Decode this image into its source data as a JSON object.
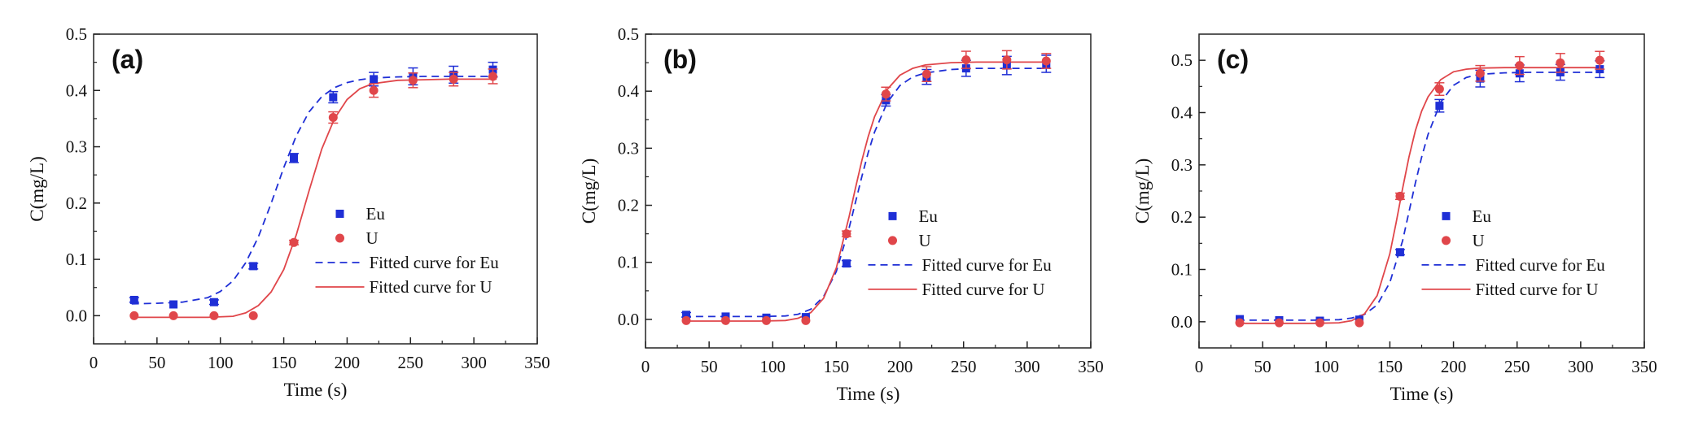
{
  "colors": {
    "eu": "#1f2fd6",
    "u": "#e0464a",
    "axis": "#222222"
  },
  "chart_data": [
    {
      "type": "scatter",
      "panel_label": "(a)",
      "xlabel": "Time (s)",
      "ylabel": "C(mg/L)",
      "xlim": [
        0,
        350
      ],
      "ylim": [
        -0.05,
        0.5
      ],
      "xticks": [
        "0",
        "50",
        "100",
        "150",
        "200",
        "250",
        "300",
        "350"
      ],
      "yticks": [
        "0.0",
        "0.1",
        "0.2",
        "0.3",
        "0.4",
        "0.5"
      ],
      "grid": false,
      "legend_position": "lower-right",
      "series": [
        {
          "name": "Eu",
          "marker": "square",
          "x": [
            32,
            63,
            95,
            126,
            158,
            189,
            221,
            252,
            284,
            315
          ],
          "y": [
            0.028,
            0.02,
            0.024,
            0.088,
            0.28,
            0.388,
            0.42,
            0.425,
            0.428,
            0.437
          ],
          "err": [
            0.004,
            0.003,
            0.004,
            0.005,
            0.008,
            0.01,
            0.012,
            0.015,
            0.015,
            0.013
          ]
        },
        {
          "name": "U",
          "marker": "circle",
          "x": [
            32,
            63,
            95,
            126,
            158,
            189,
            221,
            252,
            284,
            315
          ],
          "y": [
            0.0,
            0.0,
            0.0,
            0.0,
            0.13,
            0.352,
            0.4,
            0.418,
            0.42,
            0.425
          ],
          "err": [
            0.002,
            0.002,
            0.002,
            0.002,
            0.004,
            0.01,
            0.012,
            0.013,
            0.012,
            0.013
          ]
        },
        {
          "name": "Fitted curve for Eu",
          "line": "dashed",
          "x": [
            30,
            50,
            70,
            90,
            100,
            110,
            120,
            130,
            140,
            150,
            160,
            170,
            180,
            190,
            200,
            210,
            220,
            240,
            260,
            280,
            300,
            318
          ],
          "y": [
            0.021,
            0.022,
            0.024,
            0.032,
            0.043,
            0.062,
            0.094,
            0.14,
            0.199,
            0.263,
            0.32,
            0.362,
            0.389,
            0.405,
            0.414,
            0.419,
            0.422,
            0.424,
            0.425,
            0.425,
            0.425,
            0.425
          ]
        },
        {
          "name": "Fitted curve for U",
          "line": "solid",
          "x": [
            30,
            60,
            90,
            110,
            120,
            130,
            140,
            150,
            160,
            170,
            180,
            190,
            200,
            210,
            220,
            240,
            260,
            280,
            300,
            318
          ],
          "y": [
            -0.003,
            -0.003,
            -0.003,
            -0.001,
            0.005,
            0.018,
            0.042,
            0.082,
            0.144,
            0.222,
            0.296,
            0.35,
            0.384,
            0.403,
            0.412,
            0.418,
            0.419,
            0.42,
            0.42,
            0.42
          ]
        }
      ]
    },
    {
      "type": "scatter",
      "panel_label": "(b)",
      "xlabel": "Time (s)",
      "ylabel": "C(mg/L)",
      "xlim": [
        0,
        350
      ],
      "ylim": [
        -0.05,
        0.5
      ],
      "xticks": [
        "0",
        "50",
        "100",
        "150",
        "200",
        "250",
        "300",
        "350"
      ],
      "yticks": [
        "0.0",
        "0.1",
        "0.2",
        "0.3",
        "0.4",
        "0.5"
      ],
      "grid": false,
      "legend_position": "lower-right",
      "series": [
        {
          "name": "Eu",
          "marker": "square",
          "x": [
            32,
            63,
            95,
            126,
            158,
            189,
            221,
            252,
            284,
            315
          ],
          "y": [
            0.008,
            0.005,
            0.003,
            0.004,
            0.098,
            0.384,
            0.425,
            0.44,
            0.445,
            0.448
          ],
          "err": [
            0.004,
            0.003,
            0.003,
            0.003,
            0.005,
            0.01,
            0.013,
            0.014,
            0.016,
            0.015
          ]
        },
        {
          "name": "U",
          "marker": "circle",
          "x": [
            32,
            63,
            95,
            126,
            158,
            189,
            221,
            252,
            284,
            315
          ],
          "y": [
            -0.002,
            -0.002,
            -0.002,
            -0.002,
            0.15,
            0.395,
            0.43,
            0.455,
            0.455,
            0.453
          ],
          "err": [
            0.002,
            0.002,
            0.002,
            0.002,
            0.005,
            0.012,
            0.013,
            0.015,
            0.016,
            0.013
          ]
        },
        {
          "name": "Fitted curve for Eu",
          "line": "dashed",
          "x": [
            30,
            60,
            90,
            110,
            120,
            130,
            140,
            150,
            160,
            165,
            170,
            175,
            180,
            190,
            200,
            210,
            220,
            240,
            260,
            280,
            300,
            318
          ],
          "y": [
            0.005,
            0.005,
            0.005,
            0.006,
            0.009,
            0.018,
            0.04,
            0.084,
            0.16,
            0.205,
            0.25,
            0.292,
            0.328,
            0.38,
            0.41,
            0.425,
            0.432,
            0.438,
            0.44,
            0.44,
            0.44,
            0.44
          ]
        },
        {
          "name": "Fitted curve for U",
          "line": "solid",
          "x": [
            30,
            60,
            90,
            110,
            120,
            130,
            140,
            150,
            160,
            165,
            170,
            175,
            180,
            190,
            200,
            210,
            220,
            240,
            260,
            280,
            300,
            318
          ],
          "y": [
            -0.003,
            -0.003,
            -0.003,
            -0.002,
            0.002,
            0.012,
            0.037,
            0.09,
            0.18,
            0.23,
            0.278,
            0.32,
            0.355,
            0.403,
            0.428,
            0.44,
            0.446,
            0.45,
            0.451,
            0.451,
            0.451,
            0.451
          ]
        }
      ]
    },
    {
      "type": "scatter",
      "panel_label": "(c)",
      "xlabel": "Time (s)",
      "ylabel": "C(mg/L)",
      "xlim": [
        0,
        350
      ],
      "ylim": [
        -0.05,
        0.55
      ],
      "xticks": [
        "0",
        "50",
        "100",
        "150",
        "200",
        "250",
        "300",
        "350"
      ],
      "yticks": [
        "0.0",
        "0.1",
        "0.2",
        "0.3",
        "0.4",
        "0.5"
      ],
      "grid": false,
      "legend_position": "lower-right",
      "series": [
        {
          "name": "Eu",
          "marker": "square",
          "x": [
            32,
            63,
            95,
            126,
            158,
            189,
            221,
            252,
            284,
            315
          ],
          "y": [
            0.005,
            0.003,
            0.002,
            0.004,
            0.133,
            0.413,
            0.465,
            0.475,
            0.477,
            0.483
          ],
          "err": [
            0.003,
            0.003,
            0.003,
            0.003,
            0.005,
            0.012,
            0.016,
            0.016,
            0.015,
            0.016
          ]
        },
        {
          "name": "U",
          "marker": "circle",
          "x": [
            32,
            63,
            95,
            126,
            158,
            189,
            221,
            252,
            284,
            315
          ],
          "y": [
            -0.002,
            -0.002,
            -0.002,
            -0.002,
            0.24,
            0.445,
            0.475,
            0.49,
            0.495,
            0.5
          ],
          "err": [
            0.002,
            0.002,
            0.002,
            0.002,
            0.006,
            0.012,
            0.015,
            0.017,
            0.018,
            0.017
          ]
        },
        {
          "name": "Fitted curve for Eu",
          "line": "dashed",
          "x": [
            30,
            60,
            90,
            110,
            120,
            130,
            140,
            150,
            160,
            165,
            170,
            175,
            180,
            190,
            200,
            210,
            220,
            240,
            260,
            280,
            300,
            318
          ],
          "y": [
            0.003,
            0.003,
            0.003,
            0.004,
            0.007,
            0.014,
            0.032,
            0.075,
            0.155,
            0.21,
            0.265,
            0.315,
            0.358,
            0.42,
            0.452,
            0.467,
            0.473,
            0.476,
            0.477,
            0.477,
            0.477,
            0.477
          ]
        },
        {
          "name": "Fitted curve for U",
          "line": "solid",
          "x": [
            30,
            60,
            90,
            110,
            120,
            130,
            140,
            150,
            155,
            160,
            165,
            170,
            175,
            180,
            190,
            200,
            210,
            220,
            240,
            260,
            280,
            300,
            318
          ],
          "y": [
            -0.003,
            -0.003,
            -0.003,
            -0.002,
            0.002,
            0.015,
            0.05,
            0.13,
            0.19,
            0.255,
            0.315,
            0.365,
            0.403,
            0.43,
            0.463,
            0.478,
            0.483,
            0.485,
            0.486,
            0.486,
            0.486,
            0.486,
            0.486
          ]
        }
      ]
    }
  ]
}
